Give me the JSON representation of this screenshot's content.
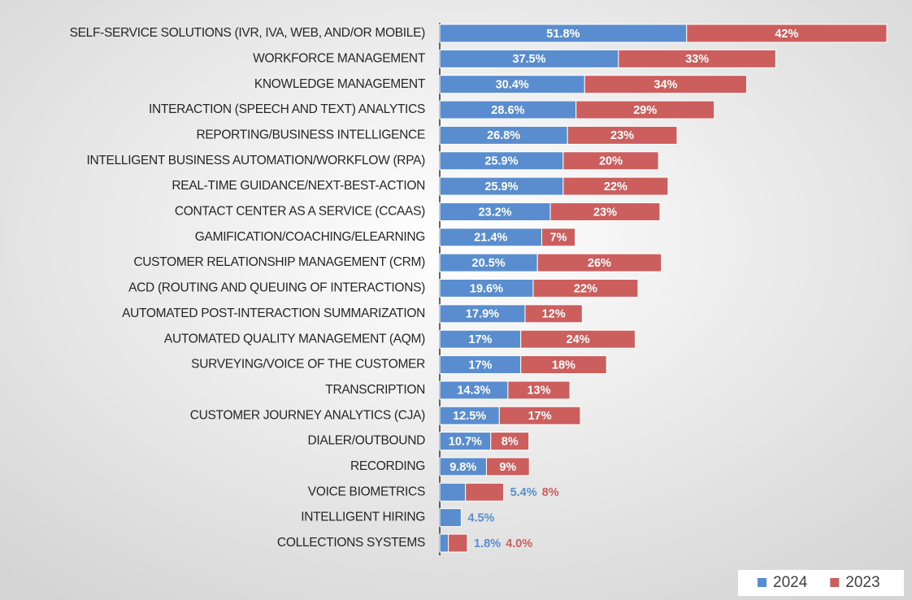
{
  "chart_data": {
    "type": "stacked-bar-horizontal",
    "categories": [
      "SELF-SERVICE SOLUTIONS (IVR, IVA, WEB, AND/OR MOBILE)",
      "WORKFORCE MANAGEMENT",
      "KNOWLEDGE MANAGEMENT",
      "INTERACTION (SPEECH AND TEXT) ANALYTICS",
      "REPORTING/BUSINESS INTELLIGENCE",
      "INTELLIGENT BUSINESS AUTOMATION/WORKFLOW (RPA)",
      "REAL-TIME GUIDANCE/NEXT-BEST-ACTION",
      "CONTACT CENTER AS A SERVICE (CCAAS)",
      "GAMIFICATION/COACHING/ELEARNING",
      "CUSTOMER RELATIONSHIP MANAGEMENT (CRM)",
      "ACD (ROUTING AND QUEUING OF INTERACTIONS)",
      "AUTOMATED POST-INTERACTION SUMMARIZATION",
      "AUTOMATED QUALITY MANAGEMENT (AQM)",
      "SURVEYING/VOICE OF THE CUSTOMER",
      "TRANSCRIPTION",
      "CUSTOMER JOURNEY ANALYTICS (CJA)",
      "DIALER/OUTBOUND",
      "RECORDING",
      "VOICE BIOMETRICS",
      "INTELLIGENT HIRING",
      "COLLECTIONS SYSTEMS"
    ],
    "series": [
      {
        "name": "2024",
        "color": "#5a8dcf",
        "values": [
          51.8,
          37.5,
          30.4,
          28.6,
          26.8,
          25.9,
          25.9,
          23.2,
          21.4,
          20.5,
          19.6,
          17.9,
          17,
          17,
          14.3,
          12.5,
          10.7,
          9.8,
          5.4,
          4.5,
          1.8
        ],
        "value_labels": [
          "51.8%",
          "37.5%",
          "30.4%",
          "28.6%",
          "26.8%",
          "25.9%",
          "25.9%",
          "23.2%",
          "21.4%",
          "20.5%",
          "19.6%",
          "17.9%",
          "17%",
          "17%",
          "14.3%",
          "12.5%",
          "10.7%",
          "9.8%",
          "5.4%",
          "4.5%",
          "1.8%"
        ]
      },
      {
        "name": "2023",
        "color": "#cd5e5e",
        "values": [
          42,
          33,
          34,
          29,
          23,
          20,
          22,
          23,
          7,
          26,
          22,
          12,
          24,
          18,
          13,
          17,
          8,
          9,
          8,
          null,
          4
        ],
        "value_labels": [
          "42%",
          "33%",
          "34%",
          "29%",
          "23%",
          "20%",
          "22%",
          "23%",
          "7%",
          "26%",
          "22%",
          "12%",
          "24%",
          "18%",
          "13%",
          "17%",
          "8%",
          "9%",
          "8%",
          null,
          "4.0%"
        ]
      }
    ],
    "xlim": [
      0,
      93.8
    ],
    "legend": "bottom-right"
  }
}
